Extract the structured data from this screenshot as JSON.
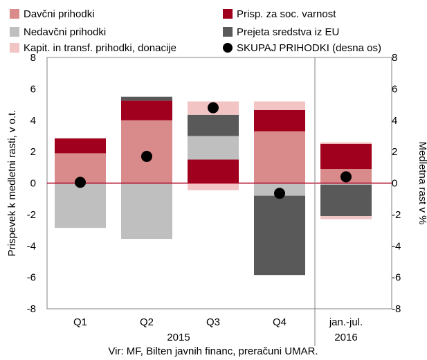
{
  "chart_data": {
    "type": "bar",
    "stacked": true,
    "categories": [
      "Q1",
      "Q2",
      "Q3",
      "Q4",
      "jan.-jul."
    ],
    "year_groups": [
      {
        "label": "2015",
        "categories": [
          "Q1",
          "Q2",
          "Q3",
          "Q4"
        ]
      },
      {
        "label": "2016",
        "categories": [
          "jan.-jul."
        ]
      }
    ],
    "series": [
      {
        "name": "Davčni prihodki",
        "color": "#d98a8a",
        "values": [
          1.9,
          4.0,
          0.0,
          3.3,
          0.9
        ]
      },
      {
        "name": "Prisp. za soc. varnost",
        "color": "#a0001e",
        "values": [
          0.95,
          1.25,
          1.5,
          1.35,
          1.6
        ]
      },
      {
        "name": "Nedavčni prihodki",
        "color": "#bfbfbf",
        "values": [
          -2.85,
          -3.55,
          1.5,
          -0.8,
          -0.1
        ]
      },
      {
        "name": "Prejeta sredstva iz EU",
        "color": "#595959",
        "values": [
          0.0,
          0.25,
          1.35,
          -5.05,
          -2.0
        ]
      },
      {
        "name": "Kapit. in transf. prihodki, donacije",
        "color": "#f2c4c4",
        "values": [
          0.0,
          0.0,
          0.85,
          0.55,
          0.1
        ]
      },
      {
        "name": "Kapit. in transf. prihodki, donacije (negative)",
        "color": "#f2c4c4",
        "values": [
          0.0,
          0.0,
          -0.45,
          0.0,
          -0.2
        ],
        "legend": false
      }
    ],
    "total": {
      "name": "SKUPAJ PRIHODKI (desna os)",
      "color": "#000000",
      "values": [
        0.05,
        1.7,
        4.8,
        -0.65,
        0.4
      ]
    },
    "ylabel": "Prispevek k medletni rasti, v o.t.",
    "y2label": "Medletna rast v %",
    "ylim": [
      -8,
      8
    ],
    "y2lim": [
      -8,
      8
    ],
    "yticks": [
      "8",
      "6",
      "4",
      "2",
      "0",
      "-2",
      "-4",
      "-6",
      "-8"
    ],
    "legend_placement": "top",
    "grid": false
  },
  "source": "Vir: MF, Bilten javnih financ, preračuni UMAR."
}
